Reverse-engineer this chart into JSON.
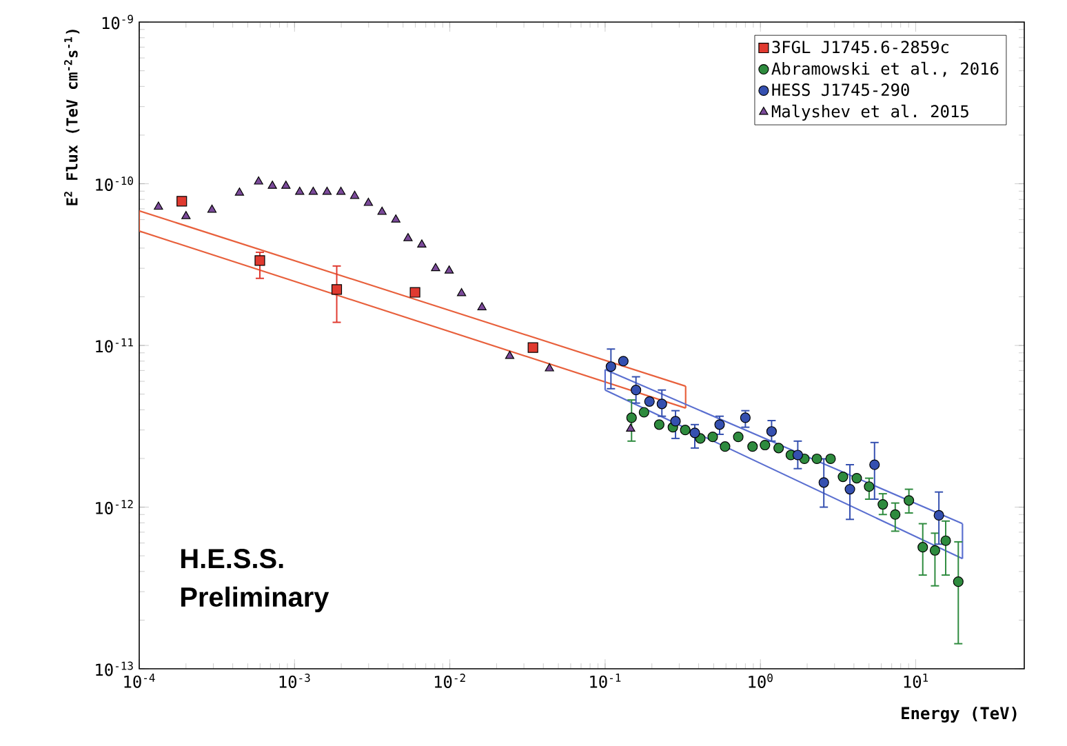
{
  "chart_data": {
    "type": "scatter",
    "xlabel": "Energy (TeV)",
    "ylabel": "E$^{2}$ Flux (TeV cm$^{-2}$s$^{-1}$)",
    "log": "xy",
    "legend": "top right",
    "xlim": [
      0.0001,
      50
    ],
    "ylim": [
      1e-13,
      1e-09
    ],
    "xticks": [
      {
        "value": 0.0001,
        "label": "10$^{-4}$"
      },
      {
        "value": 0.001,
        "label": "10$^{-3}$"
      },
      {
        "value": 0.01,
        "label": "10$^{-2}$"
      },
      {
        "value": 0.1,
        "label": "10$^{-1}$"
      },
      {
        "value": 1,
        "label": "10$^{0}$"
      },
      {
        "value": 10,
        "label": "10$^{1}$"
      }
    ],
    "yticks": [
      {
        "value": 1e-13,
        "label": "10$^{-13}$"
      },
      {
        "value": 1e-12,
        "label": "10$^{-12}$"
      },
      {
        "value": 1e-11,
        "label": "10$^{-11}$"
      },
      {
        "value": 1e-10,
        "label": "10$^{-10}$"
      },
      {
        "value": 1e-09,
        "label": "10$^{-9}$"
      }
    ],
    "annotations": [
      "H.E.S.S.",
      "Preliminary"
    ],
    "series": [
      {
        "type": "line",
        "color": "#e8603c",
        "marker": "none",
        "x": [
          0.0001,
          0.33
        ],
        "values": [
          6.8e-11,
          5.6e-12
        ]
      },
      {
        "type": "line",
        "color": "#e8603c",
        "marker": "none",
        "x": [
          0.0001,
          0.33
        ],
        "values": [
          5.1e-11,
          4.1e-12
        ]
      },
      {
        "type": "line",
        "color": "#e8603c",
        "marker": "none",
        "x": [
          0.0001,
          0.0001
        ],
        "values": [
          5.1e-11,
          6.8e-11
        ]
      },
      {
        "type": "line",
        "color": "#e8603c",
        "marker": "none",
        "x": [
          0.33,
          0.33
        ],
        "values": [
          4.1e-12,
          5.6e-12
        ]
      },
      {
        "type": "line",
        "color": "#5a6fd0",
        "marker": "none",
        "x": [
          0.1,
          20
        ],
        "values": [
          7.1e-12,
          7.9e-13
        ]
      },
      {
        "type": "line",
        "color": "#5a6fd0",
        "marker": "none",
        "x": [
          0.1,
          20
        ],
        "values": [
          5.3e-12,
          4.8e-13
        ]
      },
      {
        "type": "line",
        "color": "#5a6fd0",
        "marker": "none",
        "x": [
          0.1,
          0.1
        ],
        "values": [
          5.3e-12,
          7.1e-12
        ]
      },
      {
        "type": "line",
        "color": "#5a6fd0",
        "marker": "none",
        "x": [
          20,
          20
        ],
        "values": [
          4.8e-13,
          7.9e-13
        ]
      },
      {
        "name": "3FGL J1745.6-2859c",
        "color": "#e03a30",
        "marker": "square",
        "x": [
          0.000188,
          0.000598,
          0.00187,
          0.00597,
          0.0343
        ],
        "values": [
          7.8e-11,
          3.35e-11,
          2.22e-11,
          2.13e-11,
          9.7e-12
        ],
        "errors": [
          null,
          [
            2.6e-11,
            3.77e-11
          ],
          [
            1.39e-11,
            3.1e-11
          ],
          null,
          null
        ]
      },
      {
        "name": "Abramowski et al., 2016",
        "color": "#2e8b3e",
        "marker": "circle",
        "x": [
          0.148,
          0.178,
          0.223,
          0.273,
          0.328,
          0.41,
          0.493,
          0.592,
          0.72,
          0.89,
          1.07,
          1.31,
          1.57,
          1.92,
          2.31,
          2.83,
          3.4,
          4.17,
          5.01,
          6.14,
          7.38,
          9.04,
          11.1,
          13.3,
          15.6,
          18.8
        ],
        "values": [
          3.57e-12,
          3.86e-12,
          3.24e-12,
          3.12e-12,
          3e-12,
          2.66e-12,
          2.72e-12,
          2.37e-12,
          2.72e-12,
          2.37e-12,
          2.42e-12,
          2.32e-12,
          2.1e-12,
          1.99e-12,
          1.99e-12,
          1.99e-12,
          1.54e-12,
          1.51e-12,
          1.34e-12,
          1.04e-12,
          9e-13,
          1.1e-12,
          5.65e-13,
          5.4e-13,
          6.2e-13,
          3.46e-13
        ],
        "errors": [
          [
            2.56e-12,
            4.6e-12
          ],
          null,
          null,
          null,
          null,
          null,
          null,
          null,
          null,
          null,
          null,
          null,
          null,
          null,
          null,
          null,
          null,
          null,
          [
            1.12e-12,
            1.51e-12
          ],
          [
            9e-13,
            1.21e-12
          ],
          [
            7.1e-13,
            1.06e-12
          ],
          [
            9.2e-13,
            1.29e-12
          ],
          [
            3.8e-13,
            7.9e-13
          ],
          [
            3.26e-13,
            6.9e-13
          ],
          [
            3.8e-13,
            8.2e-13
          ],
          [
            1.43e-13,
            6.1e-13
          ]
        ]
      },
      {
        "name": "HESS J1745-290",
        "color": "#3550b0",
        "marker": "circle",
        "x": [
          0.109,
          0.131,
          0.158,
          0.193,
          0.232,
          0.284,
          0.378,
          0.546,
          0.8,
          1.18,
          1.74,
          2.56,
          3.77,
          5.43,
          14.1
        ],
        "values": [
          7.4e-12,
          8e-12,
          5.3e-12,
          4.5e-12,
          4.35e-12,
          3.4e-12,
          2.88e-12,
          3.24e-12,
          3.57e-12,
          2.94e-12,
          2.1e-12,
          1.42e-12,
          1.29e-12,
          1.83e-12,
          8.9e-13
        ],
        "errors": [
          [
            5.4e-12,
            9.5e-12
          ],
          null,
          [
            4.4e-12,
            6.4e-12
          ],
          null,
          [
            3.65e-12,
            5.3e-12
          ],
          [
            2.66e-12,
            3.95e-12
          ],
          [
            2.32e-12,
            3.24e-12
          ],
          [
            2.82e-12,
            3.65e-12
          ],
          [
            3.12e-12,
            3.95e-12
          ],
          [
            2.56e-12,
            3.43e-12
          ],
          [
            1.73e-12,
            2.56e-12
          ],
          [
            1e-12,
            1.99e-12
          ],
          [
            8.4e-13,
            1.83e-12
          ],
          [
            1.12e-12,
            2.51e-12
          ],
          [
            5.9e-13,
            1.24e-12
          ]
        ]
      },
      {
        "name": "Malyshev et al. 2015",
        "color": "#7b4a9a",
        "marker": "triangle",
        "x": [
          0.000133,
          0.0002,
          0.000294,
          0.000442,
          0.000587,
          0.00072,
          0.00088,
          0.00108,
          0.00132,
          0.00162,
          0.00199,
          0.00244,
          0.00299,
          0.00366,
          0.00449,
          0.00538,
          0.0066,
          0.0081,
          0.0099,
          0.0119,
          0.0161,
          0.0243,
          0.0438,
          0.146
        ],
        "values": [
          7.2e-11,
          6.3e-11,
          6.9e-11,
          8.8e-11,
          1.03e-10,
          9.7e-11,
          9.7e-11,
          8.9e-11,
          8.9e-11,
          8.9e-11,
          8.9e-11,
          8.4e-11,
          7.6e-11,
          6.7e-11,
          6e-11,
          4.6e-11,
          4.2e-11,
          3e-11,
          2.9e-11,
          2.1e-11,
          1.72e-11,
          8.6e-12,
          7.2e-12,
          3.05e-12
        ]
      }
    ]
  }
}
